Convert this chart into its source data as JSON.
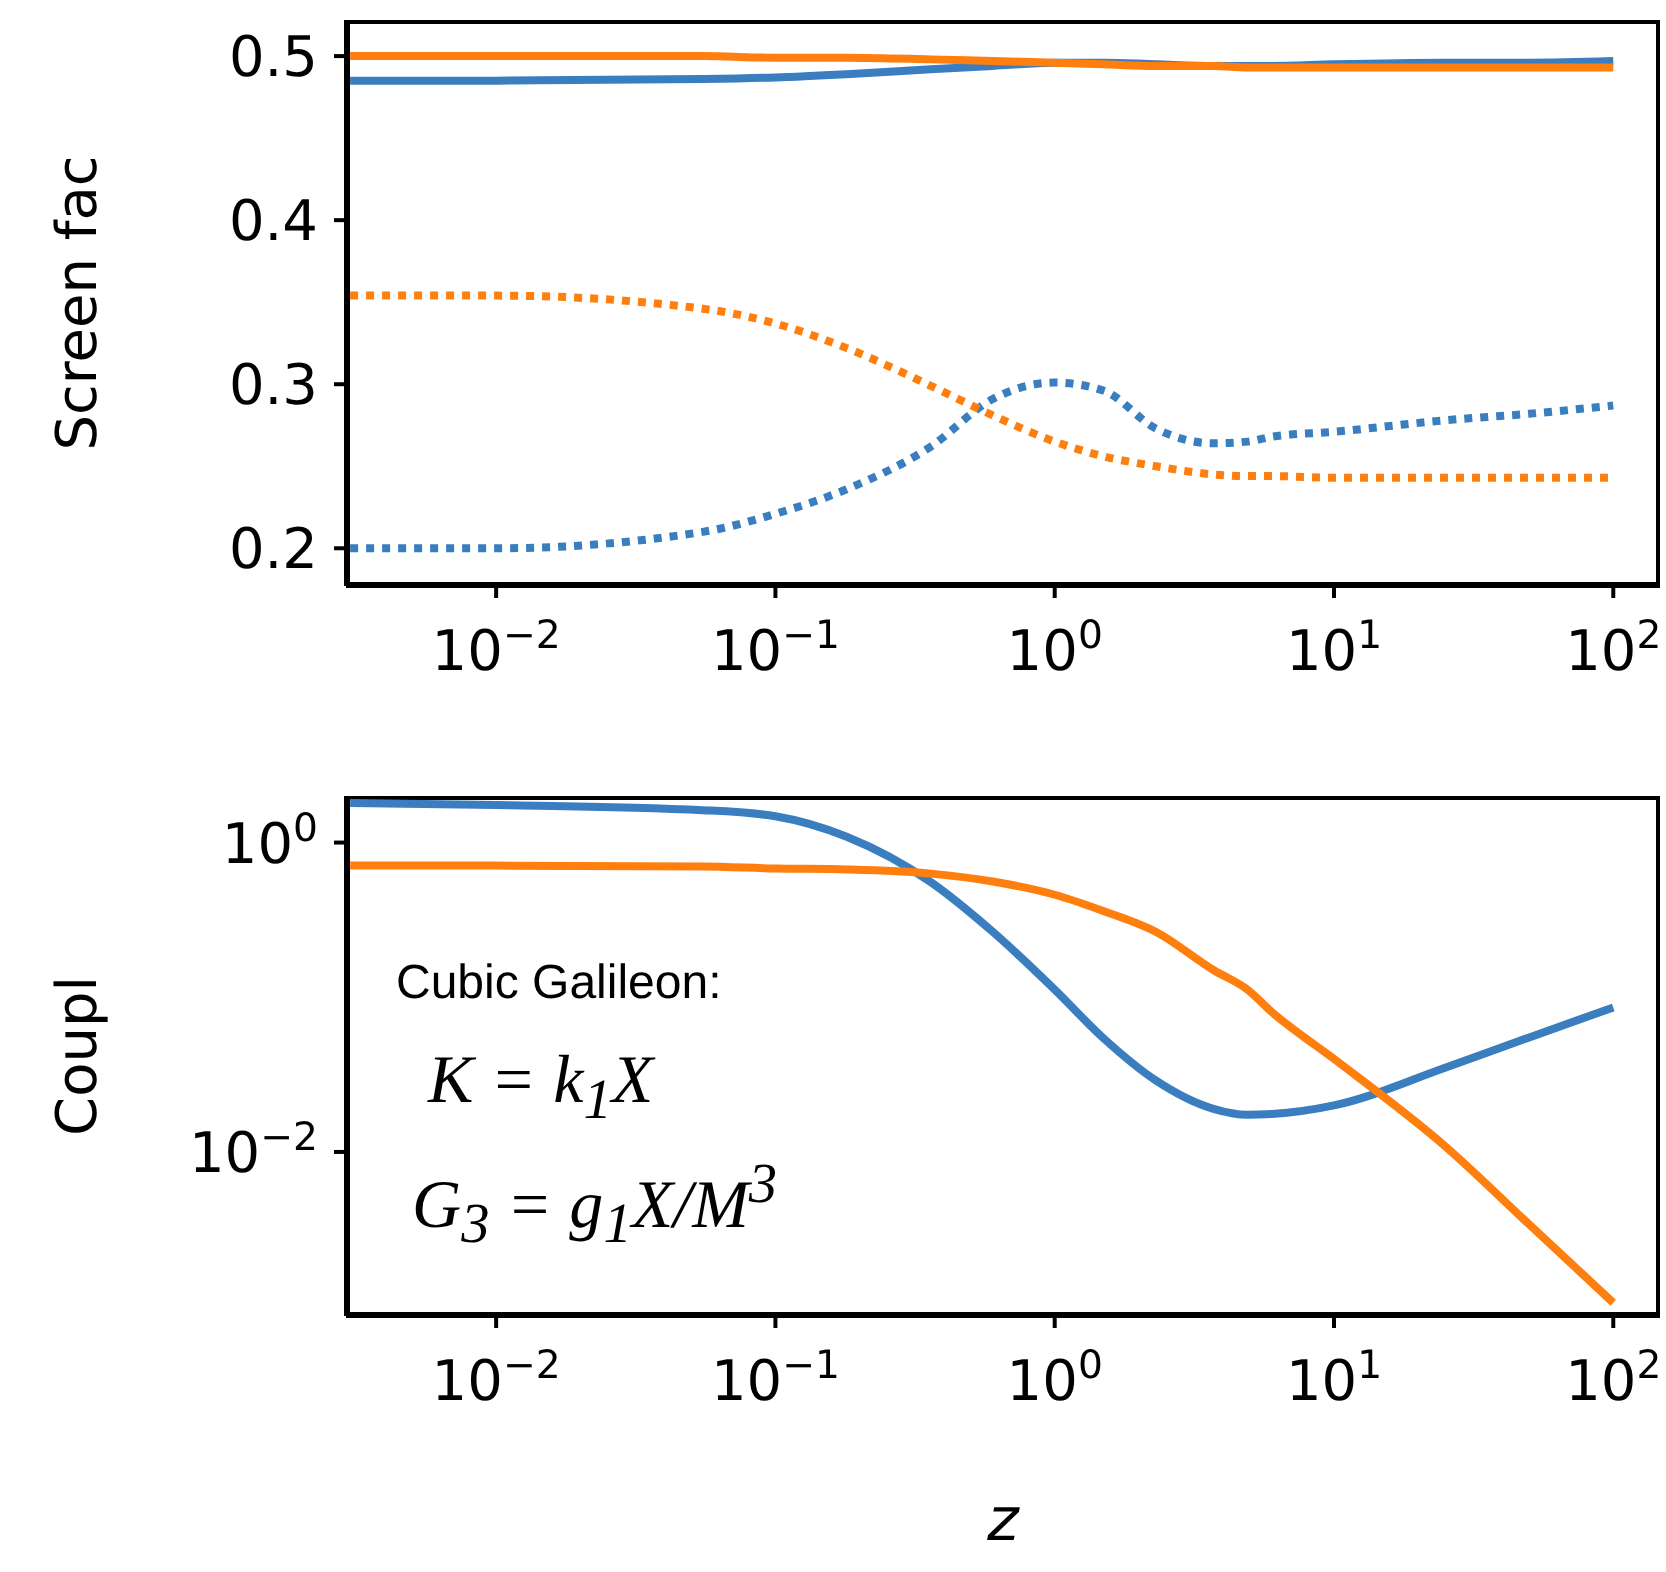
{
  "chart_data": [
    {
      "type": "line",
      "ylabel": "Screen fac",
      "x": [
        0.003,
        0.01,
        0.055,
        0.1,
        0.18,
        0.36,
        0.6,
        1,
        1.5,
        2.3,
        3.7,
        4.9,
        6,
        10,
        25,
        50,
        100
      ],
      "series": [
        {
          "color": "#3a7ebf",
          "line_style": "solid",
          "values": [
            0.485,
            0.485,
            0.486,
            0.487,
            0.489,
            0.492,
            0.494,
            0.496,
            0.496,
            0.495,
            0.494,
            0.494,
            0.494,
            0.495,
            0.496,
            0.496,
            0.497
          ]
        },
        {
          "color": "#ff7f0e",
          "line_style": "solid",
          "values": [
            0.5,
            0.5,
            0.5,
            0.499,
            0.499,
            0.498,
            0.497,
            0.496,
            0.495,
            0.494,
            0.494,
            0.493,
            0.493,
            0.493,
            0.493,
            0.493,
            0.493
          ]
        },
        {
          "color": "#3a7ebf",
          "line_style": "dotted",
          "values": [
            0.2,
            0.2,
            0.21,
            0.221,
            0.236,
            0.262,
            0.291,
            0.301,
            0.296,
            0.273,
            0.264,
            0.265,
            0.268,
            0.271,
            0.278,
            0.282,
            0.287
          ]
        },
        {
          "color": "#ff7f0e",
          "line_style": "dotted",
          "values": [
            0.354,
            0.354,
            0.346,
            0.337,
            0.322,
            0.299,
            0.281,
            0.265,
            0.256,
            0.25,
            0.245,
            0.244,
            0.244,
            0.243,
            0.243,
            0.243,
            0.243
          ]
        }
      ],
      "log": "x",
      "xlim": [
        0.0029,
        147
      ],
      "xticks": [
        {
          "value": 0.01,
          "label": "10$^{−2}$"
        },
        {
          "value": 0.1,
          "label": "10$^{−1}$"
        },
        {
          "value": 1,
          "label": "10$^{0}$"
        },
        {
          "value": 10,
          "label": "10$^{1}$"
        },
        {
          "value": 100,
          "label": "10$^{2}$"
        }
      ],
      "ylim": [
        0.177,
        0.522
      ],
      "yticks": [
        0.2,
        0.3,
        0.4,
        0.5
      ],
      "grid": false,
      "legend": false
    },
    {
      "type": "line",
      "xlabel": "z",
      "ylabel": "Coupl",
      "x": [
        0.003,
        0.01,
        0.055,
        0.1,
        0.18,
        0.36,
        0.6,
        1,
        1.5,
        2.3,
        3.7,
        4.9,
        6,
        10,
        25,
        50,
        100
      ],
      "series": [
        {
          "color": "#3a7ebf",
          "line_style": "solid",
          "values": [
            1.8,
            1.75,
            1.62,
            1.48,
            1.09,
            0.555,
            0.265,
            0.112,
            0.054,
            0.029,
            0.019,
            0.0174,
            0.0176,
            0.02,
            0.035,
            0.055,
            0.086
          ]
        },
        {
          "color": "#ff7f0e",
          "line_style": "solid",
          "values": [
            0.71,
            0.71,
            0.7,
            0.68,
            0.67,
            0.63,
            0.56,
            0.46,
            0.36,
            0.265,
            0.15,
            0.112,
            0.08,
            0.04,
            0.0109,
            0.0034,
            0.00106
          ]
        }
      ],
      "log": "xy",
      "xlim": [
        0.0029,
        147
      ],
      "xticks": [
        {
          "value": 0.01,
          "label": "10$^{−2}$"
        },
        {
          "value": 0.1,
          "label": "10$^{−1}$"
        },
        {
          "value": 1,
          "label": "10$^{0}$"
        },
        {
          "value": 10,
          "label": "10$^{1}$"
        },
        {
          "value": 100,
          "label": "10$^{2}$"
        }
      ],
      "ylim": [
        0.00087,
        2
      ],
      "yticks": [
        {
          "value": 1,
          "label": "10$^{0}$"
        },
        {
          "value": 0.01,
          "label": "10$^{−2}$"
        }
      ],
      "grid": false,
      "legend": false,
      "annotations": [
        "Cubic Galileon:",
        "K = k$_{1}$X",
        "G$_{3}$ = g$_{1}$X/M$^{3}$"
      ]
    }
  ]
}
